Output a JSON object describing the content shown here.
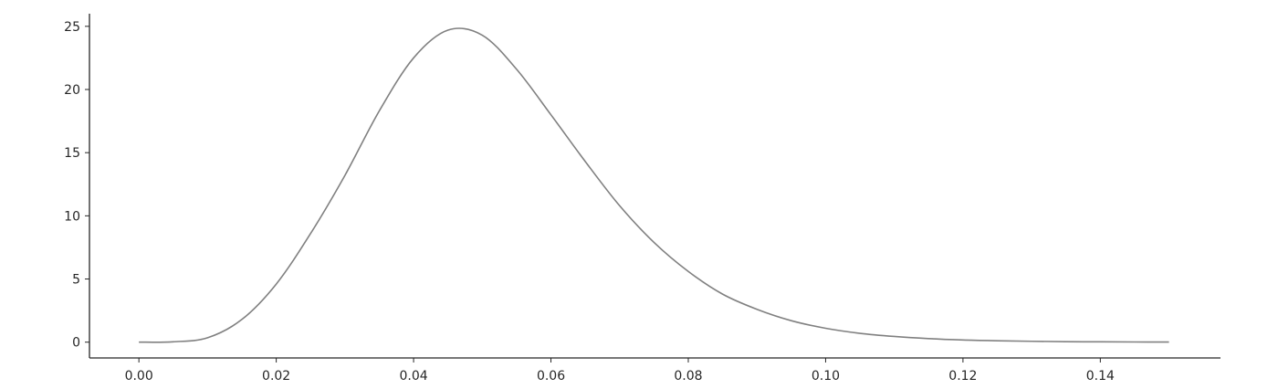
{
  "chart_data": {
    "type": "line",
    "title": "",
    "xlabel": "",
    "ylabel": "",
    "xlim": [
      -0.0072,
      0.1575
    ],
    "ylim": [
      -1.25,
      26.0
    ],
    "x_ticks": [
      "0.00",
      "0.02",
      "0.04",
      "0.06",
      "0.08",
      "0.10",
      "0.12",
      "0.14"
    ],
    "y_ticks": [
      "0",
      "5",
      "10",
      "15",
      "20",
      "25"
    ],
    "grid": false,
    "legend": "none",
    "line_color": "#808080",
    "series": [
      {
        "x": [
          0.0,
          0.005,
          0.01,
          0.015,
          0.02,
          0.025,
          0.03,
          0.035,
          0.04,
          0.045,
          0.05,
          0.055,
          0.06,
          0.065,
          0.07,
          0.075,
          0.08,
          0.085,
          0.09,
          0.095,
          0.1,
          0.105,
          0.11,
          0.115,
          0.12,
          0.125,
          0.13,
          0.135,
          0.14,
          0.145,
          0.15
        ],
        "y": [
          0.0,
          0.03,
          0.35,
          1.8,
          4.6,
          8.6,
          13.2,
          18.3,
          22.5,
          24.7,
          24.3,
          21.6,
          18.0,
          14.3,
          10.8,
          7.9,
          5.6,
          3.8,
          2.6,
          1.7,
          1.1,
          0.7,
          0.45,
          0.28,
          0.17,
          0.11,
          0.07,
          0.04,
          0.025,
          0.015,
          0.01
        ]
      }
    ]
  }
}
